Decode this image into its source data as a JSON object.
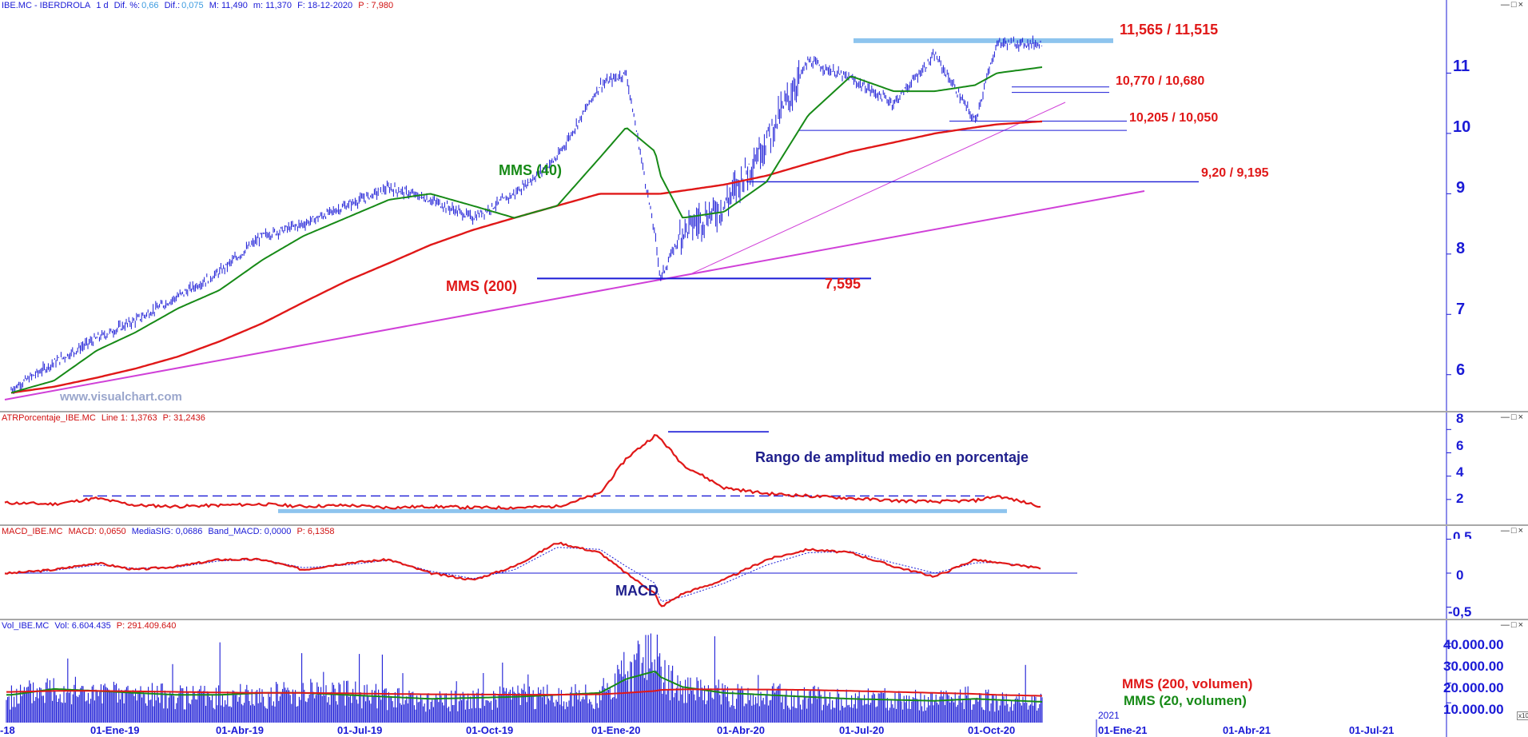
{
  "main_panel": {
    "header": {
      "symbol": "IBE.MC - IBERDROLA",
      "interval": "1 d",
      "dif_pct_label": "Dif. %:",
      "dif_pct_value": "0,66",
      "dif_label": "Dif.:",
      "dif_value": "0,075",
      "max_label": "M: 11,490",
      "min_label": "m: 11,370",
      "date_label": "F: 18-12-2020",
      "p_label": "P : 7,980"
    },
    "watermark": "www.visualchart.com",
    "annotations": {
      "resistance": "11,565 / 11,515",
      "level_2": "10,770 / 10,680",
      "level_3": "10,205 / 10,050",
      "level_4": "9,20 / 9,195",
      "low": "7,595",
      "mms40": "MMS (40)",
      "mms200": "MMS (200)"
    },
    "y_ticks": [
      "11",
      "10",
      "9",
      "8",
      "7",
      "6"
    ]
  },
  "atr_panel": {
    "header": {
      "name": "ATRPorcentaje_IBE.MC",
      "line": "Line 1: 1,3763",
      "p": "P: 31,2436"
    },
    "annotation": "Rango de amplitud medio en porcentaje",
    "y_ticks": [
      "8",
      "6",
      "4",
      "2"
    ]
  },
  "macd_panel": {
    "header": {
      "name": "MACD_IBE.MC",
      "macd": "MACD: 0,0650",
      "signal": "MediaSIG: 0,0686",
      "band": "Band_MACD: 0,0000",
      "p": "P: 6,1358"
    },
    "annotation": "MACD",
    "y_ticks": [
      "0,5",
      "0",
      "-0,5"
    ]
  },
  "volume_panel": {
    "header": {
      "name": "Vol_IBE.MC",
      "vol": "Vol: 6.604.435",
      "p": "P: 291.409.640"
    },
    "annotations": {
      "mms200": "MMS (200, volumen)",
      "mms20": "MMS (20, volumen)"
    },
    "y_ticks": [
      "40.000.00",
      "30.000.00",
      "20.000.00",
      "10.000.00"
    ],
    "year_marker": "2021",
    "scale_note": "x10"
  },
  "x_axis": {
    "labels": [
      "-18",
      "01-Ene-19",
      "01-Abr-19",
      "01-Jul-19",
      "01-Oct-19",
      "01-Ene-20",
      "01-Abr-20",
      "01-Jul-20",
      "01-Oct-20",
      "01-Ene-21",
      "01-Abr-21",
      "01-Jul-21"
    ]
  },
  "chart_data": [
    {
      "type": "line",
      "panel": "price",
      "x_dates": [
        "2018-12-01",
        "2019-01-01",
        "2019-02-01",
        "2019-03-01",
        "2019-04-01",
        "2019-05-01",
        "2019-06-01",
        "2019-07-01",
        "2019-08-01",
        "2019-09-01",
        "2019-10-01",
        "2019-11-01",
        "2019-12-01",
        "2020-01-01",
        "2020-02-01",
        "2020-02-20",
        "2020-03-12",
        "2020-03-16",
        "2020-04-01",
        "2020-05-01",
        "2020-06-01",
        "2020-07-01",
        "2020-08-01",
        "2020-09-01",
        "2020-10-01",
        "2020-10-30",
        "2020-11-15",
        "2020-12-18"
      ],
      "series": [
        {
          "name": "IBE.MC",
          "values": [
            5.75,
            6.2,
            6.6,
            6.9,
            7.3,
            7.7,
            8.3,
            8.5,
            8.8,
            9.1,
            8.9,
            8.6,
            9.0,
            9.6,
            10.8,
            11.0,
            8.3,
            7.6,
            8.4,
            8.8,
            9.9,
            11.2,
            10.9,
            10.5,
            11.3,
            10.2,
            11.5,
            11.49
          ]
        },
        {
          "name": "MMS (40)",
          "values": [
            5.7,
            5.9,
            6.4,
            6.7,
            7.1,
            7.4,
            7.9,
            8.3,
            8.6,
            8.9,
            9.0,
            8.8,
            8.6,
            8.8,
            9.6,
            10.1,
            9.7,
            9.3,
            8.6,
            8.7,
            9.2,
            10.3,
            10.95,
            10.7,
            10.7,
            10.8,
            11.0,
            11.1
          ]
        },
        {
          "name": "MMS (200)",
          "values": [
            5.7,
            5.8,
            5.95,
            6.1,
            6.3,
            6.55,
            6.85,
            7.2,
            7.55,
            7.85,
            8.15,
            8.4,
            8.6,
            8.8,
            9.0,
            9.0,
            9.0,
            9.0,
            9.05,
            9.15,
            9.3,
            9.5,
            9.7,
            9.85,
            10.0,
            10.1,
            10.15,
            10.2
          ]
        }
      ],
      "horizontal_levels": [
        11.565,
        11.515,
        10.77,
        10.68,
        10.205,
        10.05,
        9.2,
        9.195,
        7.595
      ],
      "ylim": [
        5.4,
        12.0
      ],
      "y_ticks": [
        6,
        7,
        8,
        9,
        10,
        11
      ]
    },
    {
      "type": "line",
      "panel": "atr_pct",
      "series": [
        {
          "name": "ATRPorcentaje_IBE.MC",
          "values": [
            1.7,
            1.6,
            2.1,
            1.5,
            1.4,
            1.5,
            1.6,
            1.4,
            1.5,
            1.3,
            1.4,
            1.3,
            1.3,
            1.4,
            2.5,
            5.5,
            7.5,
            7.2,
            5.0,
            3.0,
            2.5,
            2.3,
            2.1,
            1.9,
            1.8,
            1.9,
            2.3,
            1.4
          ]
        }
      ],
      "reference_values": [
        2.3,
        7.8,
        1.0
      ],
      "ylim": [
        0,
        8.5
      ],
      "y_ticks": [
        2,
        4,
        6,
        8
      ]
    },
    {
      "type": "line",
      "panel": "macd",
      "series": [
        {
          "name": "MACD",
          "values": [
            0.0,
            0.05,
            0.15,
            0.05,
            0.1,
            0.2,
            0.2,
            0.05,
            0.15,
            0.2,
            0.0,
            -0.1,
            0.1,
            0.45,
            0.3,
            0.0,
            -0.3,
            -0.5,
            -0.3,
            -0.1,
            0.2,
            0.35,
            0.3,
            0.1,
            -0.05,
            0.2,
            0.15,
            0.07
          ]
        },
        {
          "name": "MediaSIG",
          "values": [
            0.0,
            0.04,
            0.12,
            0.07,
            0.09,
            0.18,
            0.2,
            0.08,
            0.12,
            0.19,
            0.03,
            -0.08,
            0.05,
            0.38,
            0.35,
            0.1,
            -0.15,
            -0.42,
            -0.35,
            -0.15,
            0.12,
            0.3,
            0.32,
            0.15,
            0.0,
            0.15,
            0.16,
            0.07
          ]
        }
      ],
      "ylim": [
        -0.6,
        0.6
      ],
      "y_ticks": [
        -0.5,
        0,
        0.5
      ]
    },
    {
      "type": "bar",
      "panel": "volume",
      "series": [
        {
          "name": "Vol_IBE.MC",
          "values": [
            14000,
            20000,
            15000,
            16000,
            14000,
            14000,
            15000,
            18000,
            16000,
            14000,
            12000,
            13000,
            15000,
            14000,
            15000,
            30000,
            42000,
            28000,
            18000,
            15000,
            15000,
            14000,
            13000,
            13000,
            12000,
            14000,
            12000,
            11000
          ]
        },
        {
          "name": "MMS (200, volumen)",
          "values": [
            15500,
            16000,
            16000,
            15800,
            15500,
            15200,
            15000,
            15000,
            14800,
            14500,
            14300,
            14200,
            14100,
            14100,
            14300,
            15000,
            16000,
            16500,
            16800,
            16800,
            16700,
            16500,
            16000,
            15500,
            15000,
            14500,
            14000,
            13500
          ]
        },
        {
          "name": "MMS (20, volumen)",
          "values": [
            14000,
            17000,
            16000,
            15000,
            14000,
            14000,
            15000,
            15000,
            14000,
            13000,
            12000,
            12500,
            13000,
            14000,
            15000,
            22000,
            26000,
            23000,
            18000,
            15000,
            14000,
            13000,
            12000,
            11500,
            11000,
            12000,
            11500,
            10500
          ]
        }
      ],
      "ylim": [
        0,
        46000
      ],
      "y_ticks": [
        10000,
        20000,
        30000,
        40000
      ]
    }
  ]
}
